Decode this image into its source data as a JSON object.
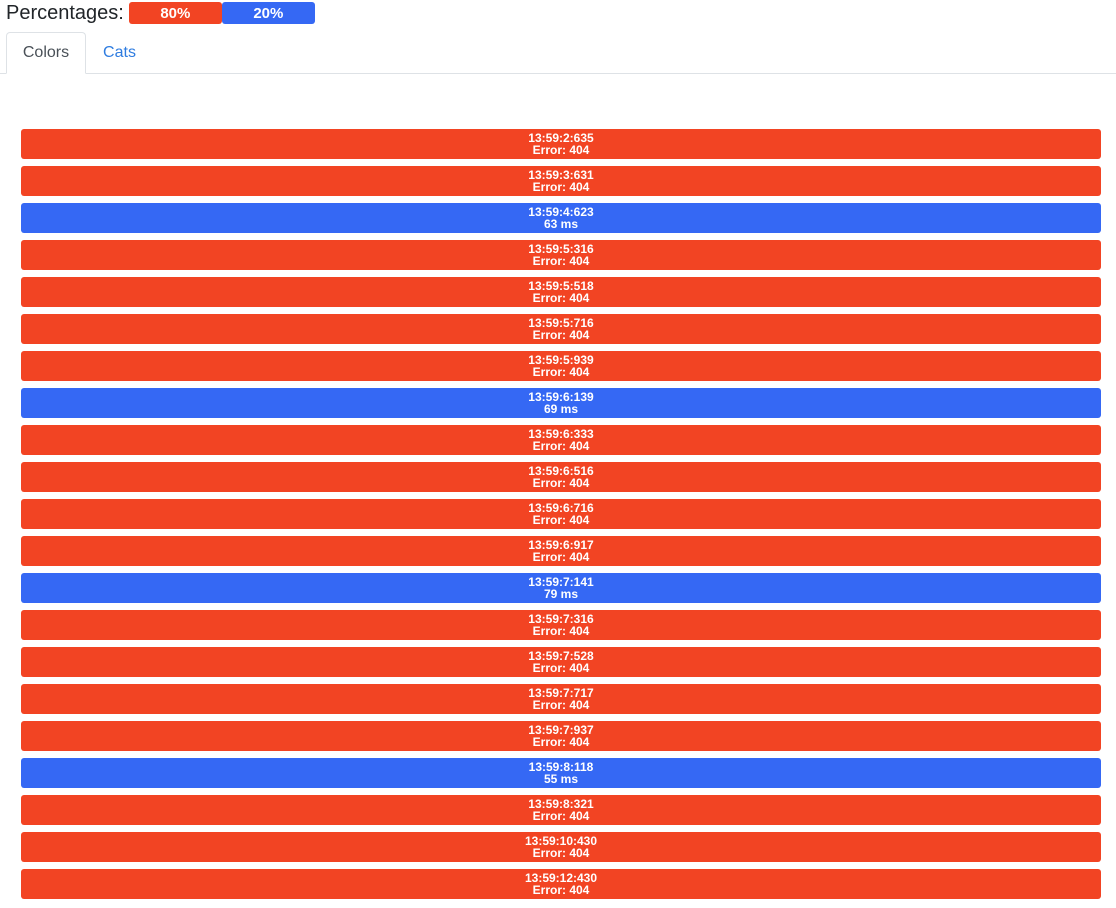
{
  "header": {
    "label": "Percentages:",
    "badges": [
      {
        "text": "80%",
        "color": "#f24423"
      },
      {
        "text": "20%",
        "color": "#3568f4"
      }
    ]
  },
  "tabs": [
    {
      "label": "Colors",
      "active": true
    },
    {
      "label": "Cats",
      "active": false
    }
  ],
  "colors": {
    "error": "#f24423",
    "success": "#3568f4"
  },
  "rows": [
    {
      "time": "13:59:2:635",
      "result": "Error: 404",
      "status": "error"
    },
    {
      "time": "13:59:3:631",
      "result": "Error: 404",
      "status": "error"
    },
    {
      "time": "13:59:4:623",
      "result": "63 ms",
      "status": "success"
    },
    {
      "time": "13:59:5:316",
      "result": "Error: 404",
      "status": "error"
    },
    {
      "time": "13:59:5:518",
      "result": "Error: 404",
      "status": "error"
    },
    {
      "time": "13:59:5:716",
      "result": "Error: 404",
      "status": "error"
    },
    {
      "time": "13:59:5:939",
      "result": "Error: 404",
      "status": "error"
    },
    {
      "time": "13:59:6:139",
      "result": "69 ms",
      "status": "success"
    },
    {
      "time": "13:59:6:333",
      "result": "Error: 404",
      "status": "error"
    },
    {
      "time": "13:59:6:516",
      "result": "Error: 404",
      "status": "error"
    },
    {
      "time": "13:59:6:716",
      "result": "Error: 404",
      "status": "error"
    },
    {
      "time": "13:59:6:917",
      "result": "Error: 404",
      "status": "error"
    },
    {
      "time": "13:59:7:141",
      "result": "79 ms",
      "status": "success"
    },
    {
      "time": "13:59:7:316",
      "result": "Error: 404",
      "status": "error"
    },
    {
      "time": "13:59:7:528",
      "result": "Error: 404",
      "status": "error"
    },
    {
      "time": "13:59:7:717",
      "result": "Error: 404",
      "status": "error"
    },
    {
      "time": "13:59:7:937",
      "result": "Error: 404",
      "status": "error"
    },
    {
      "time": "13:59:8:118",
      "result": "55 ms",
      "status": "success"
    },
    {
      "time": "13:59:8:321",
      "result": "Error: 404",
      "status": "error"
    },
    {
      "time": "13:59:10:430",
      "result": "Error: 404",
      "status": "error"
    },
    {
      "time": "13:59:12:430",
      "result": "Error: 404",
      "status": "error"
    }
  ]
}
